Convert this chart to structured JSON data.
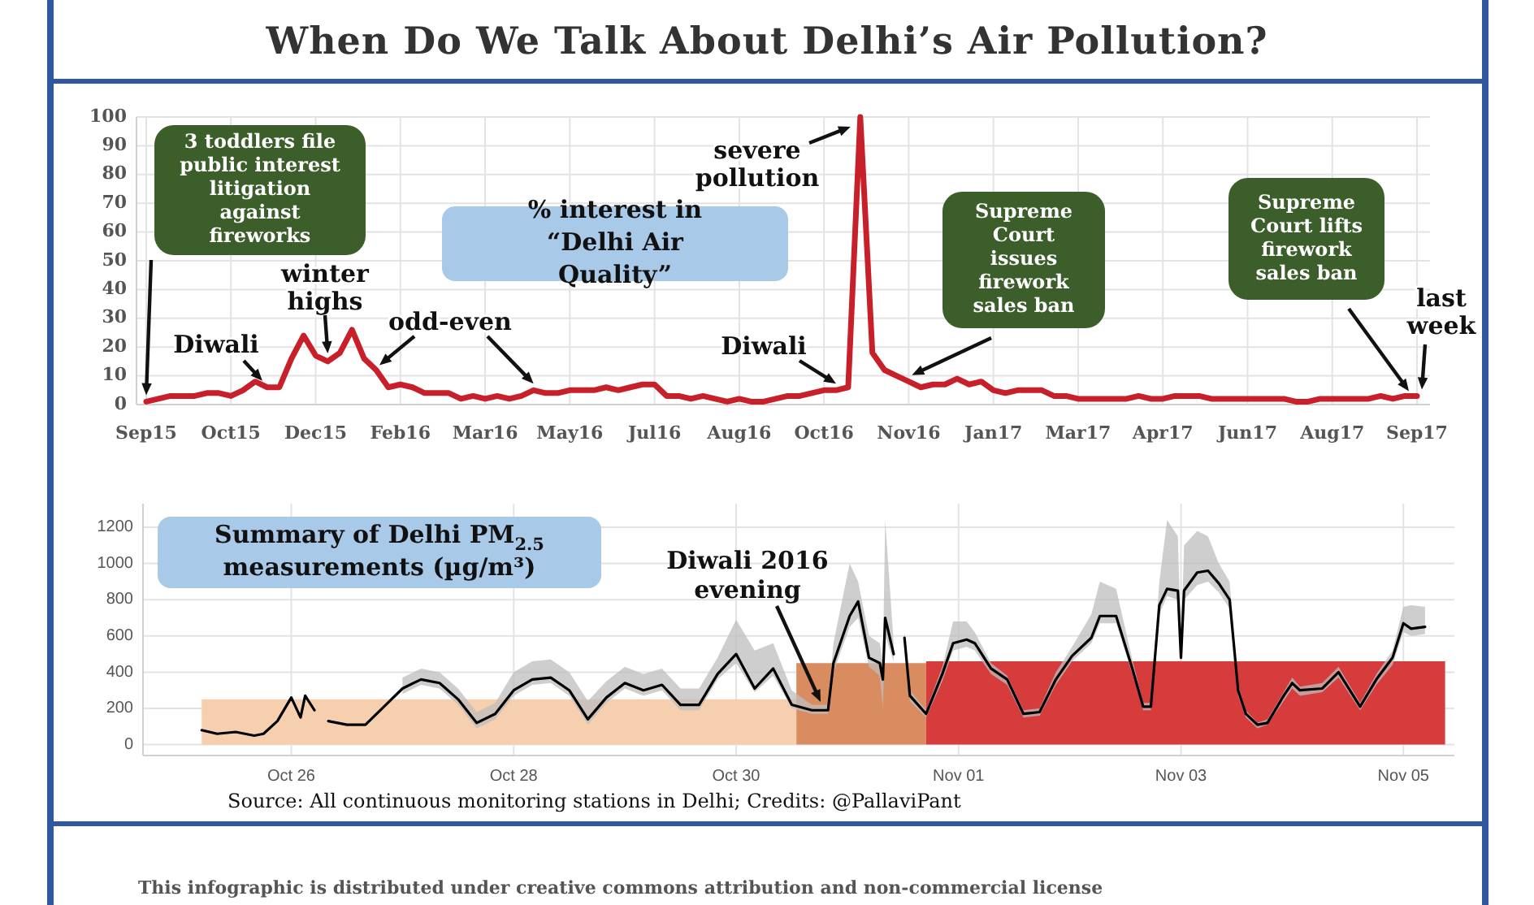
{
  "chart_data": [
    {
      "type": "line",
      "title": "When Do We Talk About Delhi’s Air Pollution?",
      "subtitle": "% interest in “Delhi Air Quality”",
      "categories": [
        "Sep15",
        null,
        null,
        null,
        null,
        null,
        null,
        "Oct15",
        null,
        null,
        null,
        null,
        null,
        null,
        "Dec15",
        null,
        null,
        null,
        null,
        null,
        null,
        "Feb16",
        null,
        null,
        null,
        null,
        null,
        null,
        "Mar16",
        null,
        null,
        null,
        null,
        null,
        null,
        "May16",
        null,
        null,
        null,
        null,
        null,
        null,
        "Jul16",
        null,
        null,
        null,
        null,
        null,
        null,
        "Aug16",
        null,
        null,
        null,
        null,
        null,
        null,
        "Oct16",
        null,
        null,
        null,
        null,
        null,
        null,
        "Nov16",
        null,
        null,
        null,
        null,
        null,
        null,
        "Jan17",
        null,
        null,
        null,
        null,
        null,
        null,
        "Mar17",
        null,
        null,
        null,
        null,
        null,
        null,
        "Apr17",
        null,
        null,
        null,
        null,
        null,
        null,
        "Jun17",
        null,
        null,
        null,
        null,
        null,
        null,
        "Aug17",
        null,
        null,
        null,
        null,
        null,
        null,
        "Sep17"
      ],
      "values": [
        1,
        2,
        3,
        3,
        3,
        4,
        4,
        3,
        5,
        8,
        6,
        6,
        16,
        24,
        17,
        15,
        18,
        26,
        16,
        12,
        6,
        7,
        6,
        4,
        4,
        4,
        2,
        3,
        2,
        3,
        2,
        3,
        5,
        4,
        4,
        5,
        5,
        5,
        6,
        5,
        6,
        7,
        7,
        3,
        3,
        2,
        3,
        2,
        1,
        2,
        1,
        1,
        2,
        3,
        3,
        4,
        5,
        5,
        6,
        100,
        18,
        12,
        10,
        8,
        6,
        7,
        7,
        9,
        7,
        8,
        5,
        4,
        5,
        5,
        5,
        3,
        3,
        2,
        2,
        2,
        2,
        2,
        3,
        2,
        2,
        3,
        3,
        3,
        2,
        2,
        2,
        2,
        2,
        2,
        2,
        1,
        1,
        2,
        2,
        2,
        2,
        2,
        3,
        2,
        3,
        3
      ],
      "color": "#c8202a",
      "ylim": [
        0,
        100
      ],
      "yticks": [
        0,
        10,
        20,
        30,
        40,
        50,
        60,
        70,
        80,
        90,
        100
      ],
      "grid": true,
      "annotations": [
        "3 toddlers file public interest litigation against fireworks",
        "Diwali",
        "winter highs",
        "odd-even",
        "Diwali",
        "severe pollution",
        {
          "text": "Supreme Court issues firework sales ban",
          "x": "Nov16",
          "y": 8
        },
        "Supreme Court lifts firework sales ban",
        "last week"
      ]
    },
    {
      "type": "line",
      "title": "Summary of Delhi PM$_{2.5}$ measurements (µg/m³)",
      "xlim": [
        "2016-10-24T16:00",
        "2016-11-05T11:00"
      ],
      "xticks": [
        {
          "value": "2016-10-26",
          "label": "Oct 26"
        },
        {
          "value": "2016-10-28",
          "label": "Oct 28"
        },
        {
          "value": "2016-10-30",
          "label": "Oct 30"
        },
        {
          "value": "2016-11-01",
          "label": "Nov 01"
        },
        {
          "value": "2016-11-03",
          "label": "Nov 03"
        },
        {
          "value": "2016-11-05",
          "label": "Nov 05"
        }
      ],
      "ylim": [
        -60,
        1330
      ],
      "yticks": [
        0,
        200,
        400,
        600,
        800,
        1000,
        1200
      ],
      "grid": true,
      "series": [
        {
          "type": "area",
          "color": "#f6cfae",
          "x": [
            "2016-10-25T04:40",
            "2016-10-30T13:00"
          ],
          "values": [
            250,
            250
          ]
        },
        {
          "type": "area",
          "color": "#d98c5f",
          "x": [
            "2016-10-30T13:00",
            "2016-10-31T17:00"
          ],
          "values": [
            450,
            450
          ]
        },
        {
          "type": "area",
          "color": "#d63c3c",
          "x": [
            "2016-10-31T17:00",
            "2016-11-05T09:00"
          ],
          "values": [
            460,
            460
          ]
        },
        {
          "color": "#000000",
          "x": [
            "2016-10-25T04:40",
            "2016-10-25T08:00",
            "2016-10-25T12:00",
            "2016-10-25T16:00",
            "2016-10-25T18:00",
            "2016-10-25T21:00",
            "2016-10-26T00:00",
            "2016-10-26T02:00",
            "2016-10-26T03:00",
            "2016-10-26T05:00",
            "2016-10-26T06:30",
            "2016-10-26T08:00",
            "2016-10-26T12:00",
            "2016-10-26T16:00",
            "2016-10-26T20:00",
            "2016-10-27T00:00",
            "2016-10-27T04:00",
            "2016-10-27T08:00",
            "2016-10-27T12:00",
            "2016-10-27T16:00",
            "2016-10-27T20:00",
            "2016-10-28T00:00",
            "2016-10-28T04:00",
            "2016-10-28T08:00",
            "2016-10-28T12:00",
            "2016-10-28T16:00",
            "2016-10-28T20:00",
            "2016-10-29T00:00",
            "2016-10-29T04:00",
            "2016-10-29T08:00",
            "2016-10-29T12:00",
            "2016-10-29T16:00",
            "2016-10-29T20:00",
            "2016-10-30T00:00",
            "2016-10-30T04:00",
            "2016-10-30T08:00",
            "2016-10-30T12:00",
            "2016-10-30T16:20",
            "2016-10-30T19:50",
            "2016-10-30T21:00",
            "2016-10-31T00:30",
            "2016-10-31T02:20",
            "2016-10-31T04:40",
            "2016-10-31T07:00",
            "2016-10-31T07:40",
            "2016-10-31T08:10",
            "2016-10-31T10:00",
            "2016-10-31T11:00",
            "2016-10-31T12:20",
            "2016-10-31T13:30",
            "2016-10-31T17:00",
            "2016-10-31T20:30",
            "2016-10-31T22:50",
            "2016-11-01T01:45",
            "2016-11-01T03:30",
            "2016-11-01T07:00",
            "2016-11-01T10:30",
            "2016-11-01T14:00",
            "2016-11-01T17:30",
            "2016-11-01T21:00",
            "2016-11-02T00:30",
            "2016-11-02T04:40",
            "2016-11-02T06:30",
            "2016-11-02T10:00",
            "2016-11-02T13:30",
            "2016-11-02T15:50",
            "2016-11-02T17:30",
            "2016-11-02T19:20",
            "2016-11-02T21:00",
            "2016-11-02T23:20",
            "2016-11-03T00:00",
            "2016-11-03T00:40",
            "2016-11-03T03:30",
            "2016-11-03T05:50",
            "2016-11-03T08:10",
            "2016-11-03T10:30",
            "2016-11-03T12:20",
            "2016-11-03T14:00",
            "2016-11-03T16:30",
            "2016-11-03T18:40",
            "2016-11-03T22:10",
            "2016-11-04T00:00",
            "2016-11-04T01:40",
            "2016-11-04T06:30",
            "2016-11-04T10:00",
            "2016-11-04T14:40",
            "2016-11-04T18:10",
            "2016-11-04T21:40",
            "2016-11-05T00:00",
            "2016-11-05T01:40",
            "2016-11-05T04:40"
          ],
          "values": [
            80,
            60,
            70,
            50,
            60,
            130,
            260,
            150,
            270,
            190,
            null,
            130,
            110,
            110,
            210,
            310,
            360,
            340,
            250,
            120,
            170,
            300,
            360,
            370,
            300,
            140,
            260,
            340,
            300,
            330,
            220,
            220,
            390,
            500,
            310,
            420,
            220,
            190,
            190,
            450,
            710,
            790,
            480,
            450,
            360,
            700,
            500,
            null,
            590,
            270,
            170,
            390,
            560,
            580,
            560,
            420,
            360,
            170,
            180,
            360,
            490,
            590,
            710,
            710,
            420,
            210,
            210,
            770,
            860,
            850,
            480,
            850,
            950,
            960,
            890,
            800,
            300,
            170,
            110,
            120,
            270,
            340,
            300,
            310,
            400,
            210,
            360,
            480,
            670,
            640,
            650
          ],
          "lower": [
            null,
            null,
            null,
            null,
            null,
            null,
            null,
            null,
            null,
            null,
            null,
            null,
            null,
            null,
            null,
            280,
            330,
            310,
            220,
            90,
            140,
            270,
            330,
            340,
            270,
            110,
            230,
            310,
            270,
            300,
            190,
            190,
            360,
            450,
            290,
            380,
            200,
            170,
            170,
            400,
            650,
            700,
            430,
            380,
            200,
            600,
            460,
            null,
            560,
            240,
            150,
            350,
            520,
            540,
            520,
            390,
            330,
            150,
            160,
            330,
            460,
            560,
            670,
            670,
            390,
            190,
            190,
            720,
            820,
            800,
            450,
            800,
            880,
            900,
            840,
            750,
            270,
            150,
            90,
            110,
            240,
            310,
            270,
            290,
            370,
            190,
            330,
            440,
            620,
            600,
            610
          ],
          "upper": [
            null,
            null,
            null,
            null,
            null,
            null,
            null,
            null,
            null,
            null,
            null,
            null,
            null,
            null,
            null,
            370,
            420,
            400,
            310,
            180,
            230,
            400,
            460,
            470,
            400,
            240,
            350,
            430,
            390,
            420,
            310,
            310,
            480,
            690,
            520,
            560,
            300,
            220,
            220,
            560,
            1000,
            900,
            600,
            560,
            450,
            1240,
            560,
            null,
            620,
            300,
            190,
            430,
            680,
            680,
            620,
            450,
            380,
            190,
            200,
            400,
            540,
            720,
            900,
            860,
            470,
            230,
            230,
            900,
            1240,
            1150,
            520,
            1100,
            1180,
            1150,
            1000,
            900,
            330,
            190,
            120,
            140,
            290,
            370,
            320,
            340,
            430,
            230,
            390,
            520,
            760,
            770,
            760
          ]
        }
      ],
      "annotations": [
        "Diwali 2016 evening",
        "Source: All continuous monitoring stations in Delhi; Credits: @PallaviPant",
        "This infographic is distributed under creative commons attribution and non-commercial license"
      ]
    }
  ]
}
